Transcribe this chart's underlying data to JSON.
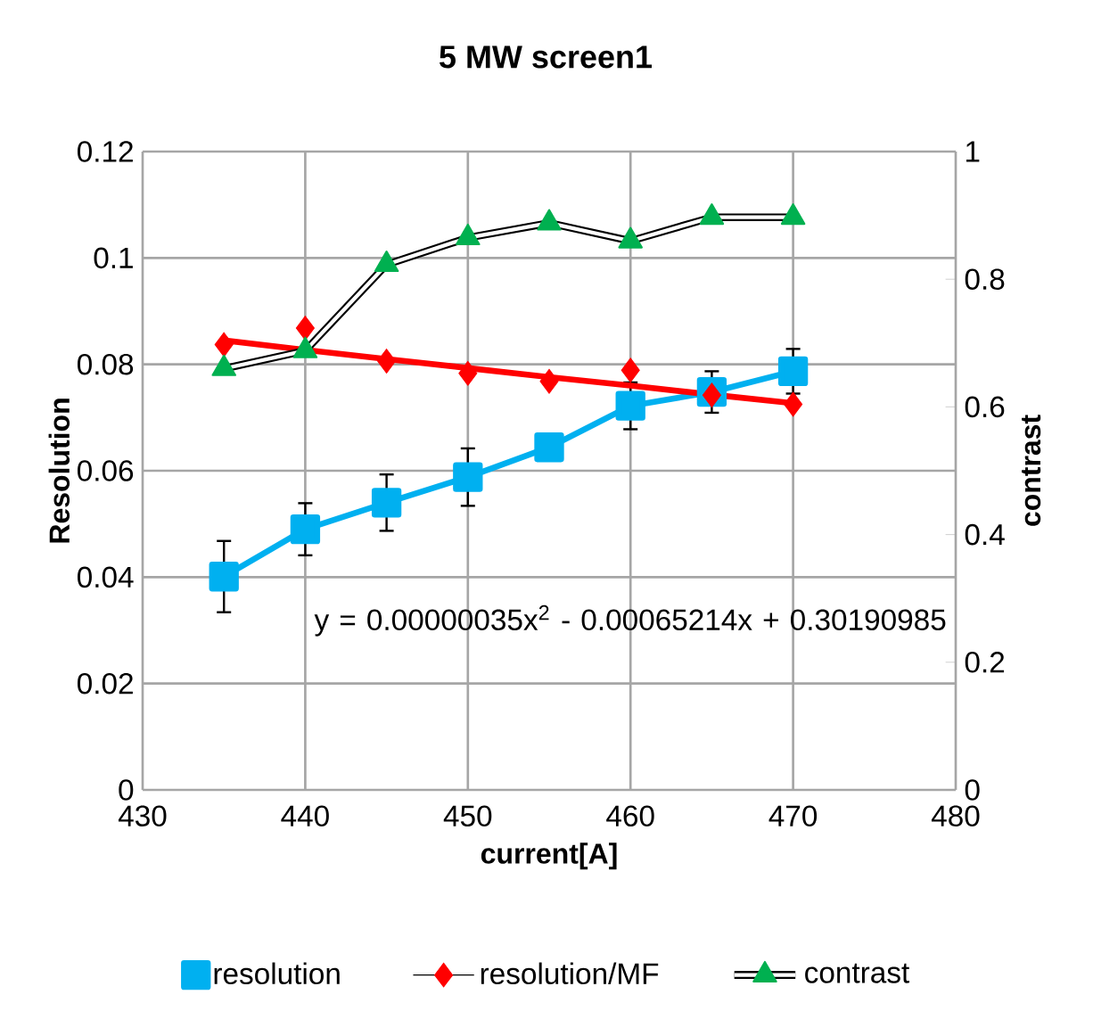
{
  "chart_data": {
    "type": "line",
    "title": "5 MW screen1",
    "xlabel": "current[A]",
    "ylabel": "Resolution",
    "y2label": "contrast",
    "x": [
      435,
      440,
      445,
      450,
      455,
      460,
      465,
      470
    ],
    "series": [
      {
        "name": "resolution",
        "type": "line",
        "color": "#00b0f0",
        "marker": "square",
        "values": [
          0.0401,
          0.049,
          0.054,
          0.0588,
          0.0644,
          0.0722,
          0.0748,
          0.0787
        ],
        "errors": [
          0.0067,
          0.0049,
          0.0053,
          0.0054,
          null,
          0.0044,
          0.0039,
          0.0042
        ]
      },
      {
        "name": "resolution/MF",
        "type": "scatter",
        "color": "#ff0000",
        "marker": "diamond",
        "values": [
          0.0837,
          0.0868,
          0.0806,
          0.0783,
          0.0768,
          0.0789,
          0.0742,
          0.0725
        ]
      },
      {
        "type": "line",
        "color": "#ff0000",
        "marker": "none",
        "x": [
          435,
          440,
          445,
          450,
          455,
          460,
          465,
          470
        ],
        "values": [
          0.0845,
          0.0827,
          0.081,
          0.0793,
          0.0776,
          0.076,
          0.0743,
          0.0727
        ]
      },
      {
        "name": "contrast",
        "type": "line",
        "axis": "y2",
        "color": "#00b050",
        "marker": "triangle",
        "values": [
          0.66,
          0.688,
          0.823,
          0.865,
          0.888,
          0.86,
          0.897,
          0.897
        ]
      }
    ],
    "xlim": [
      430,
      480
    ],
    "xticks": [
      430,
      440,
      450,
      460,
      470,
      480
    ],
    "ylim": [
      0,
      0.12
    ],
    "yticks": [
      0,
      0.02,
      0.04,
      0.06,
      0.08,
      0.1,
      0.12
    ],
    "y2lim": [
      0,
      1
    ],
    "y2ticks": [
      0,
      0.2,
      0.4,
      0.6,
      0.8,
      1
    ],
    "grid": true,
    "legend": "bottom",
    "annotations": [
      "y = 0.00000035x$^{2}$ - 0.00065214x + 0.30190985"
    ]
  }
}
